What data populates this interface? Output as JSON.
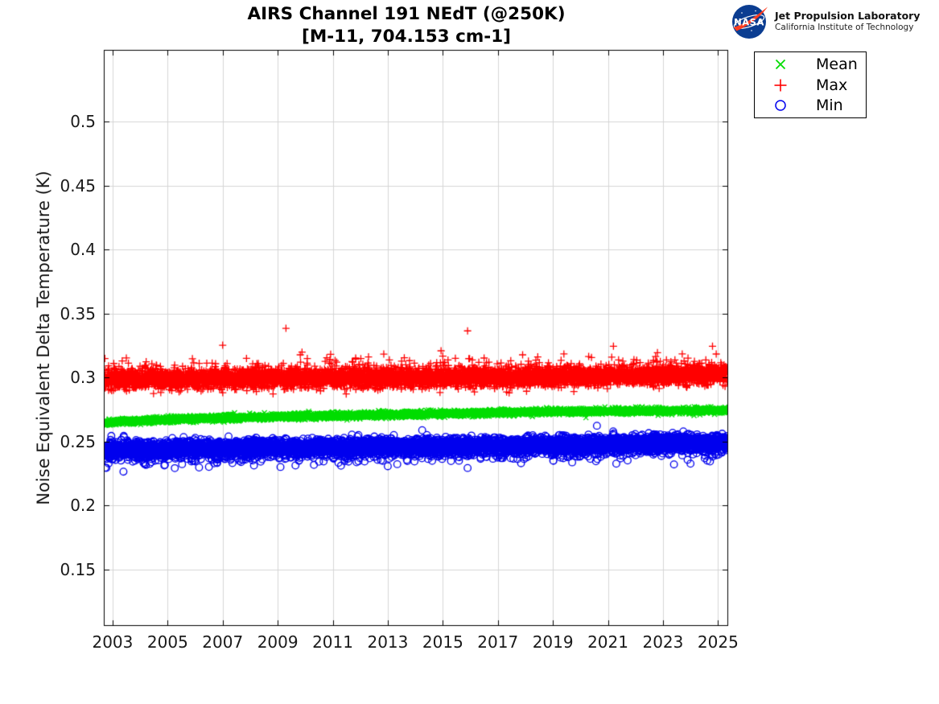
{
  "logo": {
    "org": "NASA",
    "line1": "Jet Propulsion Laboratory",
    "line2": "California Institute of Technology",
    "meatball_blue": "#0B3D91",
    "meatball_red": "#FC3D21"
  },
  "chart_data": {
    "type": "scatter",
    "title": "AIRS Channel 191 NEdT (@250K)",
    "subtitle": "[M-11, 704.153 cm-1]",
    "xlabel": "",
    "ylabel": "Noise Equivalent Delta Temperature (K)",
    "grid": true,
    "background": "#ffffff",
    "grid_color": "#d6d6d6",
    "axis_color": "#000000",
    "legend_position": "top-right-outside",
    "xlim": [
      2002.68,
      2025.37
    ],
    "ylim": [
      0.106,
      0.556
    ],
    "xticks": [
      {
        "v": 2003,
        "label": "2003"
      },
      {
        "v": 2005,
        "label": "2005"
      },
      {
        "v": 2007,
        "label": "2007"
      },
      {
        "v": 2009,
        "label": "2009"
      },
      {
        "v": 2011,
        "label": "2011"
      },
      {
        "v": 2013,
        "label": "2013"
      },
      {
        "v": 2015,
        "label": "2015"
      },
      {
        "v": 2017,
        "label": "2017"
      },
      {
        "v": 2019,
        "label": "2019"
      },
      {
        "v": 2021,
        "label": "2021"
      },
      {
        "v": 2023,
        "label": "2023"
      },
      {
        "v": 2025,
        "label": "2025"
      }
    ],
    "yticks": [
      {
        "v": 0.15,
        "label": "0.15"
      },
      {
        "v": 0.2,
        "label": "0.2"
      },
      {
        "v": 0.25,
        "label": "0.25"
      },
      {
        "v": 0.3,
        "label": "0.3"
      },
      {
        "v": 0.35,
        "label": "0.35"
      },
      {
        "v": 0.4,
        "label": "0.4"
      },
      {
        "v": 0.45,
        "label": "0.45"
      },
      {
        "v": 0.5,
        "label": "0.5"
      }
    ],
    "x_start": 2002.7,
    "x_end": 2025.32,
    "points_per_series": 6000,
    "seed": 20250191,
    "series": [
      {
        "name": "Mean",
        "marker": "x",
        "color": "#00DD00",
        "sigma": 0.0011,
        "trend": [
          [
            2002.7,
            0.2645
          ],
          [
            2003.2,
            0.2657
          ],
          [
            2006,
            0.268
          ],
          [
            2010,
            0.2698
          ],
          [
            2014,
            0.2715
          ],
          [
            2018,
            0.273
          ],
          [
            2021,
            0.2738
          ],
          [
            2025.32,
            0.2745
          ]
        ],
        "outliers": [
          [
            2020.2,
            0.2687
          ]
        ]
      },
      {
        "name": "Max",
        "marker": "+",
        "color": "#FF0000",
        "sigma": 0.0036,
        "trend": [
          [
            2002.7,
            0.2985
          ],
          [
            2010,
            0.2995
          ],
          [
            2018,
            0.3005
          ],
          [
            2025.32,
            0.3025
          ]
        ],
        "tail": {
          "prob": 0.055,
          "min": 0.0025,
          "max": 0.012,
          "dir": 1
        },
        "outliers": [
          [
            2005.9,
            0.3148
          ],
          [
            2007.0,
            0.3253
          ],
          [
            2009.3,
            0.3385
          ],
          [
            2009.82,
            0.3178
          ],
          [
            2010.9,
            0.3142
          ],
          [
            2012.3,
            0.3162
          ],
          [
            2013.6,
            0.3155
          ],
          [
            2015.0,
            0.3168
          ],
          [
            2015.9,
            0.3365
          ],
          [
            2016.5,
            0.3153
          ],
          [
            2017.9,
            0.3178
          ],
          [
            2018.45,
            0.3162
          ],
          [
            2019.4,
            0.3185
          ],
          [
            2020.3,
            0.3165
          ],
          [
            2021.2,
            0.3245
          ],
          [
            2022.8,
            0.3195
          ],
          [
            2023.7,
            0.3185
          ],
          [
            2024.8,
            0.3245
          ]
        ]
      },
      {
        "name": "Min",
        "marker": "o",
        "color": "#0000EE",
        "sigma": 0.0031,
        "trend": [
          [
            2002.7,
            0.2435
          ],
          [
            2010,
            0.2455
          ],
          [
            2018,
            0.247
          ],
          [
            2025.32,
            0.2495
          ]
        ],
        "tail": {
          "prob": 0.075,
          "min": 0.002,
          "max": 0.01,
          "dir": -1
        },
        "outliers": [
          [
            2004.9,
            0.2318
          ],
          [
            2006.8,
            0.2332
          ],
          [
            2009.1,
            0.2302
          ],
          [
            2011.3,
            0.2312
          ],
          [
            2013.0,
            0.2308
          ],
          [
            2015.9,
            0.2294
          ],
          [
            2019.7,
            0.2338
          ],
          [
            2020.6,
            0.2624
          ],
          [
            2023.4,
            0.2322
          ],
          [
            2024.0,
            0.2328
          ]
        ]
      }
    ]
  }
}
